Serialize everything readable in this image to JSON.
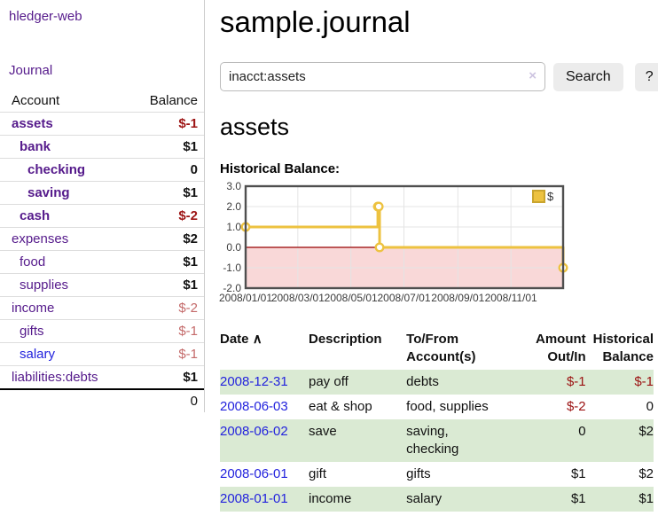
{
  "sidebar": {
    "brand": "hledger-web",
    "nav": {
      "journal_label": "Journal"
    },
    "accounts_table": {
      "headers": {
        "account": "Account",
        "balance": "Balance"
      },
      "rows": [
        {
          "name": "assets",
          "depth": 1,
          "bold": true,
          "link": "visited",
          "balance": "$-1",
          "balance_style": "neg-strong"
        },
        {
          "name": "bank",
          "depth": 2,
          "bold": true,
          "link": "visited",
          "balance": "$1",
          "balance_style": "pos"
        },
        {
          "name": "checking",
          "depth": 3,
          "bold": true,
          "link": "visited",
          "balance": "0",
          "balance_style": "pos"
        },
        {
          "name": "saving",
          "depth": 3,
          "bold": true,
          "link": "visited",
          "balance": "$1",
          "balance_style": "pos"
        },
        {
          "name": "cash",
          "depth": 2,
          "bold": true,
          "link": "visited",
          "balance": "$-2",
          "balance_style": "neg-strong"
        },
        {
          "name": "expenses",
          "depth": 1,
          "bold": false,
          "link": "visited",
          "balance": "$2",
          "balance_style": "pos"
        },
        {
          "name": "food",
          "depth": 2,
          "bold": false,
          "link": "visited",
          "balance": "$1",
          "balance_style": "pos"
        },
        {
          "name": "supplies",
          "depth": 2,
          "bold": false,
          "link": "visited",
          "balance": "$1",
          "balance_style": "pos"
        },
        {
          "name": "income",
          "depth": 1,
          "bold": false,
          "link": "visited",
          "balance": "$-2",
          "balance_style": "neg-soft"
        },
        {
          "name": "gifts",
          "depth": 2,
          "bold": false,
          "link": "visited",
          "balance": "$-1",
          "balance_style": "neg-soft"
        },
        {
          "name": "salary",
          "depth": 2,
          "bold": false,
          "link": "unvisited",
          "balance": "$-1",
          "balance_style": "neg-soft"
        },
        {
          "name": "liabilities:debts",
          "depth": 1,
          "bold": false,
          "link": "visited",
          "balance": "$1",
          "balance_style": "pos"
        }
      ],
      "total": "0"
    }
  },
  "header": {
    "title": "sample.journal"
  },
  "search": {
    "value": "inacct:assets",
    "clear_icon": "×",
    "button_label": "Search",
    "help_label": "?"
  },
  "account_page": {
    "heading": "assets",
    "chart_label": "Historical Balance:"
  },
  "chart_data": {
    "type": "line",
    "title": "Historical Balance:",
    "step": "after",
    "series": [
      {
        "name": "$",
        "color": "#edc240",
        "points": [
          [
            "2008-01-01",
            1
          ],
          [
            "2008-06-01",
            2
          ],
          [
            "2008-06-02",
            2
          ],
          [
            "2008-06-03",
            0
          ],
          [
            "2008-12-31",
            -1
          ]
        ]
      }
    ],
    "xlim": [
      "2008-01-01",
      "2008-12-31"
    ],
    "ylim": [
      -2,
      3
    ],
    "x_ticks": [
      "2008/01/01",
      "2008/03/01",
      "2008/05/01",
      "2008/07/01",
      "2008/09/01",
      "2008/11/01"
    ],
    "y_ticks": [
      3.0,
      2.0,
      1.0,
      0.0,
      -1.0,
      -2.0
    ],
    "grid": true,
    "legend": {
      "label": "$",
      "position": "top-right"
    },
    "negative_region_color": "#f9d8d8",
    "zero_line_color": "#990000"
  },
  "register_table": {
    "headers": {
      "date": "Date",
      "sort_indicator": "∧",
      "description": "Description",
      "tofrom_l1": "To/From",
      "tofrom_l2": "Account(s)",
      "amount_l1": "Amount",
      "amount_l2": "Out/In",
      "balance_l1": "Historical",
      "balance_l2": "Balance"
    },
    "rows": [
      {
        "date": "2008-12-31",
        "description": "pay off",
        "accounts": "debts",
        "amount": "$-1",
        "amount_neg": true,
        "balance": "$-1",
        "balance_neg": true
      },
      {
        "date": "2008-06-03",
        "description": "eat & shop",
        "accounts": "food, supplies",
        "amount": "$-2",
        "amount_neg": true,
        "balance": "0",
        "balance_neg": false
      },
      {
        "date": "2008-06-02",
        "description": "save",
        "accounts": "saving, checking",
        "amount": "0",
        "amount_neg": false,
        "balance": "$2",
        "balance_neg": false
      },
      {
        "date": "2008-06-01",
        "description": "gift",
        "accounts": "gifts",
        "amount": "$1",
        "amount_neg": false,
        "balance": "$2",
        "balance_neg": false
      },
      {
        "date": "2008-01-01",
        "description": "income",
        "accounts": "salary",
        "amount": "$1",
        "amount_neg": false,
        "balance": "$1",
        "balance_neg": false
      }
    ]
  },
  "colors": {
    "link_purple": "#551a8b",
    "link_blue": "#2323dd",
    "negative_strong": "#9d1414",
    "negative_soft": "#c46a6a",
    "table_negative": "#9b1111",
    "row_stripe_green": "#daead3",
    "chart_line": "#edc240",
    "negative_region": "#f9d8d8",
    "zero_line": "#990000"
  }
}
